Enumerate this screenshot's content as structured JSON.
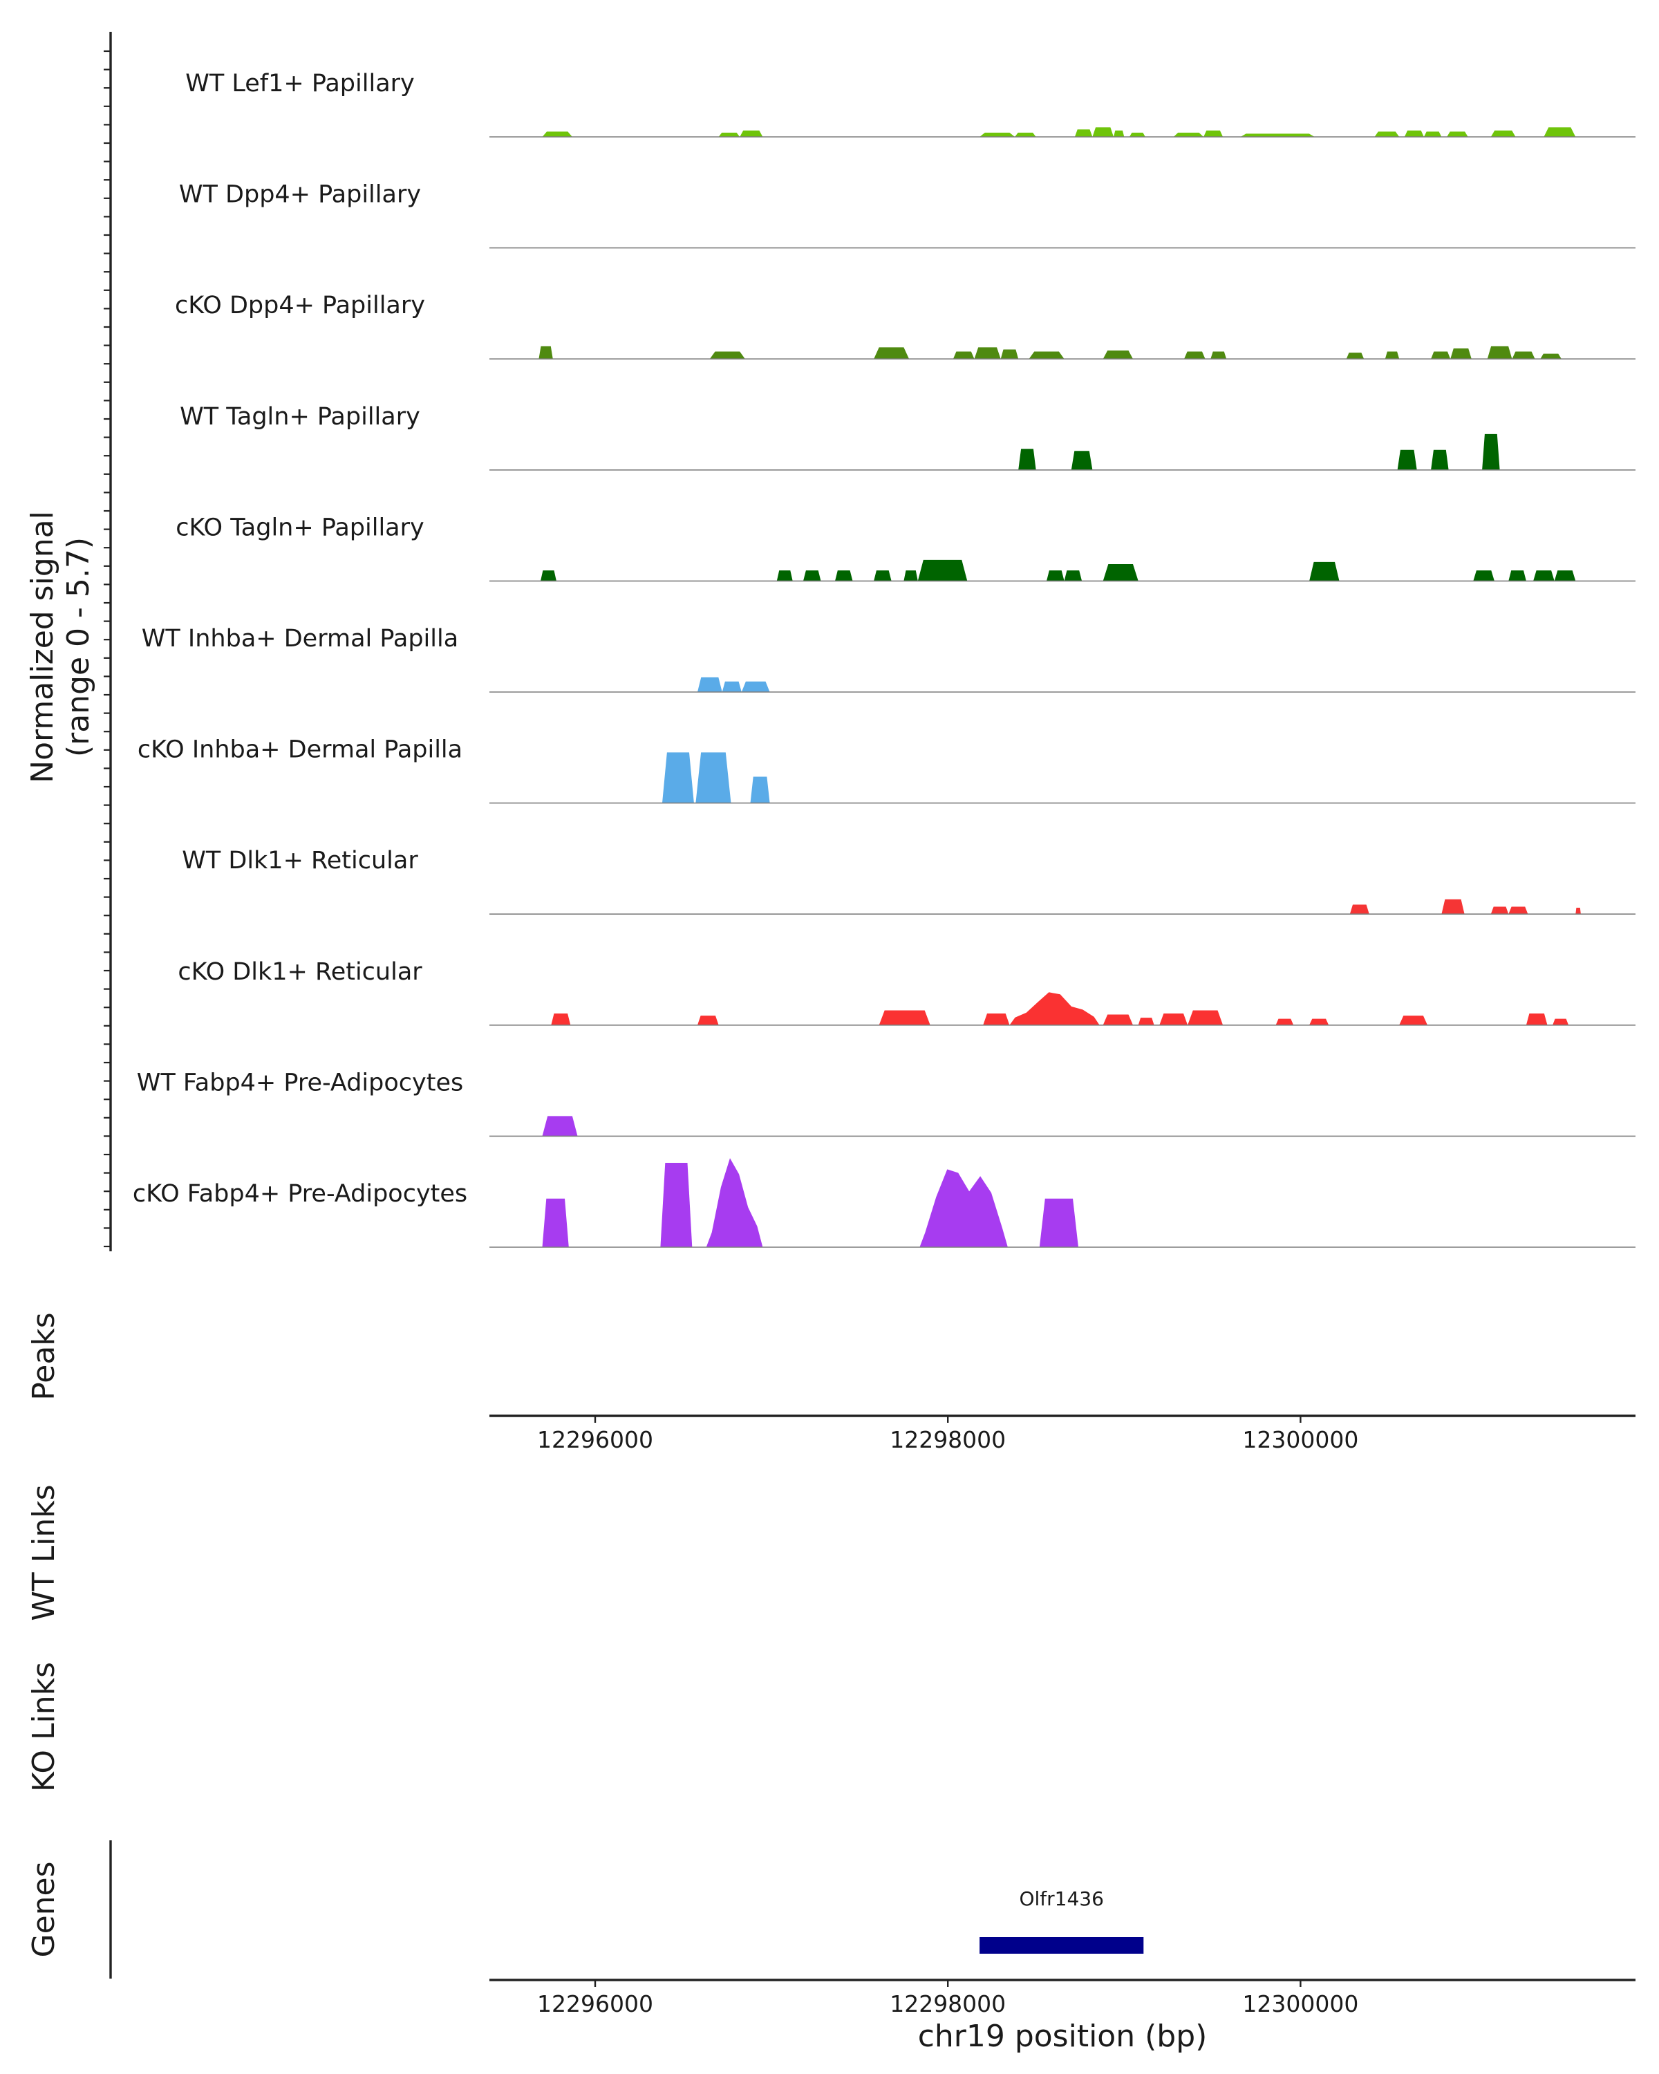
{
  "chart_data": {
    "type": "area",
    "title": "",
    "y_axis_label": "Normalized signal",
    "y_axis_sublabel": "(range 0 - 5.7)",
    "y_range": [
      0,
      5.7
    ],
    "x_range": [
      12295400,
      12301900
    ],
    "x_ticks": [
      {
        "value": 12296000,
        "label": "12296000"
      },
      {
        "value": 12298000,
        "label": "12298000"
      },
      {
        "value": 12300000,
        "label": "12300000"
      }
    ],
    "x_axis_label": "chr19 position (bp)",
    "tracks": [
      {
        "name": "WT Lef1+ Papillary",
        "color": "#6fc40a",
        "peaks": [
          [
            12295700,
            12295870,
            0.25
          ],
          [
            12296700,
            12296820,
            0.2
          ],
          [
            12296820,
            12296950,
            0.3
          ],
          [
            12298180,
            12298380,
            0.2
          ],
          [
            12298380,
            12298500,
            0.2
          ],
          [
            12298720,
            12298820,
            0.35
          ],
          [
            12298820,
            12298940,
            0.45
          ],
          [
            12298940,
            12299000,
            0.3
          ],
          [
            12299030,
            12299120,
            0.2
          ],
          [
            12299280,
            12299450,
            0.2
          ],
          [
            12299450,
            12299560,
            0.3
          ],
          [
            12299660,
            12300080,
            0.15
          ],
          [
            12300420,
            12300560,
            0.25
          ],
          [
            12300590,
            12300700,
            0.3
          ],
          [
            12300700,
            12300800,
            0.25
          ],
          [
            12300830,
            12300950,
            0.25
          ],
          [
            12301080,
            12301220,
            0.3
          ],
          [
            12301380,
            12301560,
            0.45
          ]
        ]
      },
      {
        "name": "WT Dpp4+ Papillary",
        "color": "#548b1c",
        "peaks": []
      },
      {
        "name": "cKO Dpp4+ Papillary",
        "color": "#4f8a10",
        "peaks": [
          [
            12295680,
            12295760,
            0.6
          ],
          [
            12296650,
            12296850,
            0.35
          ],
          [
            12297580,
            12297780,
            0.55
          ],
          [
            12298030,
            12298150,
            0.35
          ],
          [
            12298150,
            12298300,
            0.55
          ],
          [
            12298300,
            12298400,
            0.45
          ],
          [
            12298460,
            12298660,
            0.35
          ],
          [
            12298880,
            12299050,
            0.4
          ],
          [
            12299340,
            12299460,
            0.35
          ],
          [
            12299490,
            12299580,
            0.35
          ],
          [
            12300260,
            12300360,
            0.3
          ],
          [
            12300480,
            12300560,
            0.35
          ],
          [
            12300740,
            12300850,
            0.35
          ],
          [
            12300850,
            12300970,
            0.5
          ],
          [
            12301060,
            12301200,
            0.6
          ],
          [
            12301200,
            12301330,
            0.35
          ],
          [
            12301360,
            12301480,
            0.25
          ]
        ]
      },
      {
        "name": "WT Tagln+ Papillary",
        "color": "#006400",
        "peaks": [
          [
            12298400,
            12298500,
            1.0
          ],
          [
            12298700,
            12298820,
            0.9
          ],
          [
            12300550,
            12300660,
            0.95
          ],
          [
            12300740,
            12300840,
            0.95
          ],
          [
            12301030,
            12301130,
            1.7
          ]
        ]
      },
      {
        "name": "cKO Tagln+ Papillary",
        "color": "#006400",
        "peaks": [
          [
            12295690,
            12295780,
            0.5
          ],
          [
            12297030,
            12297120,
            0.5
          ],
          [
            12297180,
            12297280,
            0.5
          ],
          [
            12297360,
            12297460,
            0.5
          ],
          [
            12297580,
            12297680,
            0.5
          ],
          [
            12297750,
            12297830,
            0.5
          ],
          [
            12297830,
            12298110,
            1.0
          ],
          [
            12298560,
            12298660,
            0.5
          ],
          [
            12298660,
            12298760,
            0.5
          ],
          [
            12298880,
            12299080,
            0.8
          ],
          [
            12300050,
            12300220,
            0.9
          ],
          [
            12300980,
            12301100,
            0.5
          ],
          [
            12301180,
            12301280,
            0.5
          ],
          [
            12301320,
            12301440,
            0.5
          ],
          [
            12301440,
            12301560,
            0.5
          ]
        ]
      },
      {
        "name": "WT Inhba+ Dermal Papilla",
        "color": "#5aabe8",
        "peaks": [
          [
            12296580,
            12296720,
            0.7
          ],
          [
            12296720,
            12296830,
            0.5
          ],
          [
            12296830,
            12296990,
            0.5
          ]
        ]
      },
      {
        "name": "cKO Inhba+ Dermal Papilla",
        "color": "#5aabe8",
        "peaks": [
          [
            12296380,
            12296560,
            2.4
          ],
          [
            12296570,
            12296770,
            2.4
          ],
          [
            12296880,
            12296990,
            1.25
          ]
        ]
      },
      {
        "name": "WT Dlk1+ Reticular",
        "color": "#f53535",
        "peaks": [
          [
            12300280,
            12300390,
            0.45
          ],
          [
            12300800,
            12300930,
            0.7
          ],
          [
            12301080,
            12301180,
            0.35
          ],
          [
            12301180,
            12301290,
            0.35
          ],
          [
            12301560,
            12301590,
            0.3
          ]
        ]
      },
      {
        "name": "cKO Dlk1+ Reticular",
        "color": "#fa3232",
        "peaks": [
          [
            12295750,
            12295860,
            0.55
          ],
          [
            12296580,
            12296700,
            0.45
          ],
          [
            12297610,
            12297900,
            0.7
          ],
          [
            12298200,
            12298350,
            0.55
          ],
          [
            12298350,
            12298860,
            1.6
          ],
          [
            12298880,
            12299050,
            0.5
          ],
          [
            12299080,
            12299170,
            0.35
          ],
          [
            12299200,
            12299360,
            0.55
          ],
          [
            12299360,
            12299560,
            0.7
          ],
          [
            12299860,
            12299960,
            0.3
          ],
          [
            12300050,
            12300160,
            0.3
          ],
          [
            12300560,
            12300720,
            0.45
          ],
          [
            12301280,
            12301400,
            0.55
          ],
          [
            12301430,
            12301520,
            0.3
          ]
        ]
      },
      {
        "name": "WT Fabp4+ Pre-Adipocytes",
        "color": "#a73cf0",
        "peaks": [
          [
            12295700,
            12295900,
            0.95
          ]
        ]
      },
      {
        "name": "cKO Fabp4+ Pre-Adipocytes",
        "color": "#a73cf0",
        "peaks": [
          [
            12295700,
            12295850,
            2.3
          ],
          [
            12296370,
            12296550,
            4.0
          ],
          [
            12296630,
            12296950,
            4.4
          ],
          [
            12297840,
            12298340,
            4.4
          ],
          [
            12298520,
            12298740,
            2.3
          ]
        ]
      }
    ],
    "peaks_track_label": "Peaks",
    "links_tracks": [
      "WT Links",
      "KO Links"
    ],
    "genes_track_label": "Genes",
    "genes": [
      {
        "name": "Olfr1436",
        "start": 12298180,
        "end": 12299110,
        "color": "#00008b"
      }
    ]
  }
}
